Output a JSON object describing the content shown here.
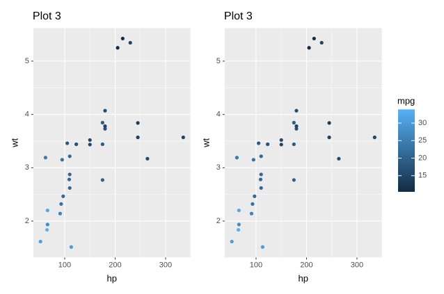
{
  "chart_data": [
    {
      "type": "scatter",
      "title": "Plot 3",
      "x_label": "hp",
      "y_label": "wt",
      "x": [
        110,
        110,
        93,
        110,
        175,
        105,
        245,
        62,
        95,
        123,
        123,
        180,
        180,
        180,
        205,
        215,
        230,
        66,
        52,
        65,
        97,
        150,
        150,
        245,
        175,
        66,
        91,
        113,
        264,
        175,
        335,
        109
      ],
      "y": [
        2.62,
        2.875,
        2.32,
        3.215,
        3.44,
        3.46,
        3.57,
        3.19,
        3.15,
        3.44,
        3.44,
        4.07,
        3.73,
        3.78,
        5.25,
        5.424,
        5.345,
        2.2,
        1.615,
        1.835,
        2.465,
        3.52,
        3.435,
        3.84,
        3.845,
        1.935,
        2.14,
        1.513,
        3.17,
        2.77,
        3.57,
        2.78
      ],
      "mpg": [
        21,
        21,
        22.8,
        21.4,
        18.7,
        18.1,
        14.3,
        24.4,
        22.8,
        19.2,
        17.8,
        16.4,
        17.3,
        15.2,
        10.4,
        10.4,
        14.7,
        32.4,
        30.4,
        33.9,
        21.5,
        15.5,
        15.2,
        13.3,
        19.2,
        27.3,
        26,
        30.4,
        15.8,
        19.7,
        15,
        21.4
      ],
      "xlim": [
        37.85,
        349.15
      ],
      "ylim": [
        1.317,
        5.62
      ],
      "xticks": [
        100,
        200,
        300
      ],
      "yticks": [
        2,
        3,
        4,
        5
      ],
      "color_low": "#132B43",
      "color_high": "#56B1F7",
      "color_lim": [
        10.4,
        33.9
      ],
      "grid": true
    },
    {
      "type": "scatter",
      "title": "Plot 3",
      "x_label": "hp",
      "y_label": "wt",
      "x": [
        110,
        110,
        93,
        110,
        175,
        105,
        245,
        62,
        95,
        123,
        123,
        180,
        180,
        180,
        205,
        215,
        230,
        66,
        52,
        65,
        97,
        150,
        150,
        245,
        175,
        66,
        91,
        113,
        264,
        175,
        335,
        109
      ],
      "y": [
        2.62,
        2.875,
        2.32,
        3.215,
        3.44,
        3.46,
        3.57,
        3.19,
        3.15,
        3.44,
        3.44,
        4.07,
        3.73,
        3.78,
        5.25,
        5.424,
        5.345,
        2.2,
        1.615,
        1.835,
        2.465,
        3.52,
        3.435,
        3.84,
        3.845,
        1.935,
        2.14,
        1.513,
        3.17,
        2.77,
        3.57,
        2.78
      ],
      "mpg": [
        21,
        21,
        22.8,
        21.4,
        18.7,
        18.1,
        14.3,
        24.4,
        22.8,
        19.2,
        17.8,
        16.4,
        17.3,
        15.2,
        10.4,
        10.4,
        14.7,
        32.4,
        30.4,
        33.9,
        21.5,
        15.5,
        15.2,
        13.3,
        19.2,
        27.3,
        26,
        30.4,
        15.8,
        19.7,
        15,
        21.4
      ],
      "xlim": [
        37.85,
        349.15
      ],
      "ylim": [
        1.317,
        5.62
      ],
      "xticks": [
        100,
        200,
        300
      ],
      "yticks": [
        2,
        3,
        4,
        5
      ],
      "color_low": "#132B43",
      "color_high": "#56B1F7",
      "color_lim": [
        10.4,
        33.9
      ],
      "grid": true,
      "legend": {
        "title": "mpg",
        "ticks": [
          15,
          20,
          25,
          30
        ]
      }
    }
  ]
}
